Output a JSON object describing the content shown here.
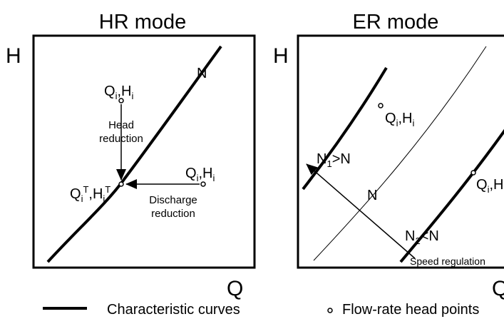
{
  "panels": [
    {
      "title": "HR mode",
      "y_axis": "H",
      "x_axis": "Q",
      "labels": [
        {
          "parts": [
            {
              "t": "N"
            }
          ]
        },
        {
          "parts": [
            {
              "t": "Q"
            },
            {
              "sub": "i"
            },
            {
              "t": ",H"
            },
            {
              "sub": "i"
            }
          ]
        },
        {
          "parts": [
            {
              "t": "Head"
            }
          ]
        },
        {
          "parts": [
            {
              "t": "reduction"
            }
          ]
        },
        {
          "parts": [
            {
              "t": "Q"
            },
            {
              "sub": "i"
            },
            {
              "sup": "T"
            },
            {
              "t": ",H"
            },
            {
              "sub": "i"
            },
            {
              "sup": "T"
            }
          ]
        },
        {
          "parts": [
            {
              "t": "Q"
            },
            {
              "sub": "i"
            },
            {
              "t": ",H"
            },
            {
              "sub": "i"
            }
          ]
        },
        {
          "parts": [
            {
              "t": "Discharge"
            }
          ]
        },
        {
          "parts": [
            {
              "t": "reduction"
            }
          ]
        }
      ]
    },
    {
      "title": "ER mode",
      "y_axis": "H",
      "x_axis": "Q",
      "labels": [
        {
          "parts": [
            {
              "t": "Q"
            },
            {
              "sub": "i"
            },
            {
              "t": ",H"
            },
            {
              "sub": "i"
            }
          ]
        },
        {
          "parts": [
            {
              "t": "N"
            },
            {
              "sub": "1"
            },
            {
              "t": ">N"
            }
          ]
        },
        {
          "parts": [
            {
              "t": "N"
            }
          ]
        },
        {
          "parts": [
            {
              "t": "Q"
            },
            {
              "sub": "i"
            },
            {
              "t": ",H"
            },
            {
              "sub": "i"
            }
          ]
        },
        {
          "parts": [
            {
              "t": "N"
            },
            {
              "sub": "2"
            },
            {
              "t": "<N"
            }
          ]
        },
        {
          "parts": [
            {
              "t": "Speed regulation"
            }
          ]
        }
      ]
    }
  ],
  "legend": [
    "Characteristic curves",
    "Flow-rate head points"
  ]
}
